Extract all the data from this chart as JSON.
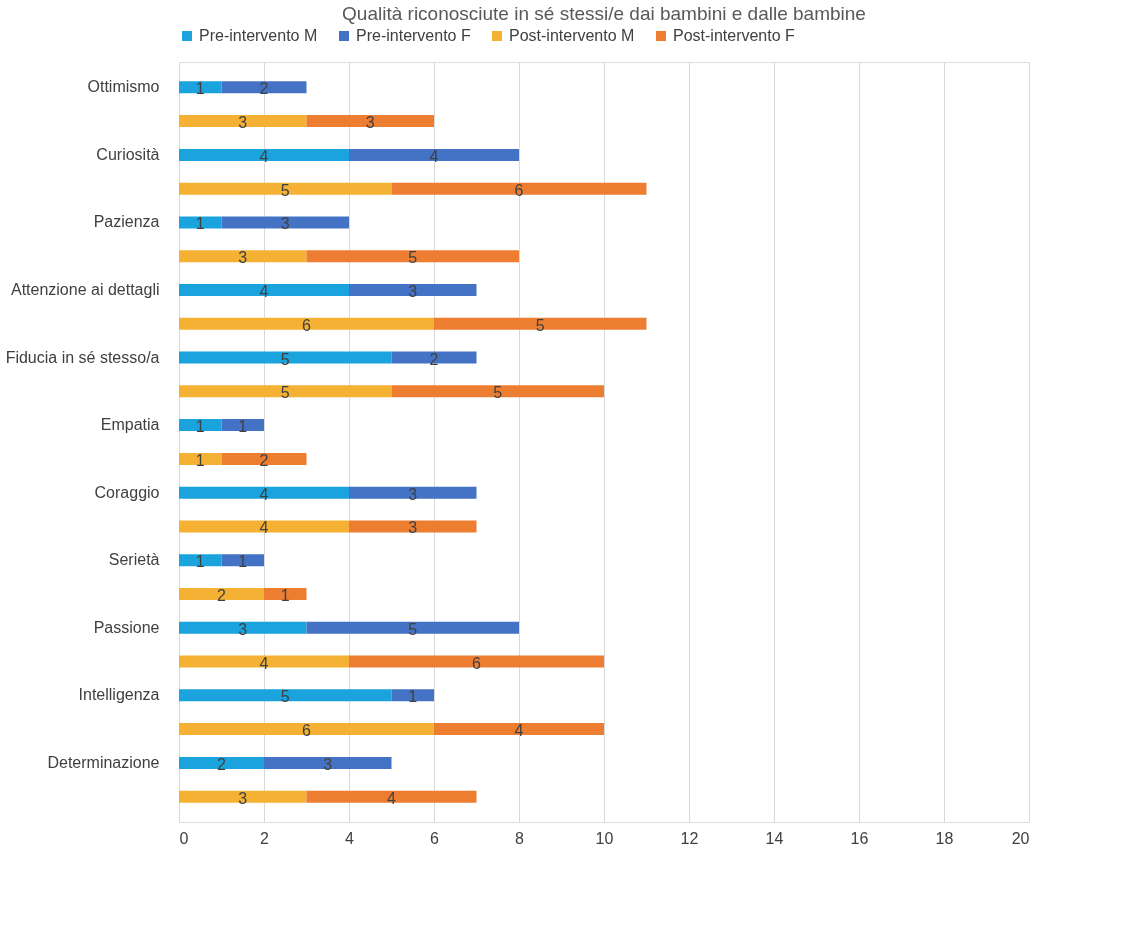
{
  "chart_data": {
    "type": "bar",
    "orientation": "horizontal",
    "stacked": true,
    "title": "Qualità riconosciute in sé stessi/e dai bambini e dalle bambine",
    "categories": [
      "Ottimismo",
      null,
      "Curiosità",
      null,
      "Pazienza",
      null,
      "Attenzione ai dettagli",
      null,
      "Fiducia in sé stesso/a",
      null,
      "Empatia",
      null,
      "Coraggio",
      null,
      "Serietà",
      null,
      "Passione",
      null,
      "Intelligenza",
      null,
      "Determinazione",
      null
    ],
    "series": [
      {
        "name": "Pre-intervento M",
        "color": "#1aa3dc",
        "values": [
          1,
          null,
          4,
          null,
          1,
          null,
          4,
          null,
          5,
          null,
          1,
          null,
          4,
          null,
          1,
          null,
          3,
          null,
          5,
          null,
          2,
          null
        ]
      },
      {
        "name": "Pre-intervento F",
        "color": "#4472c4",
        "values": [
          2,
          null,
          4,
          null,
          3,
          null,
          3,
          null,
          2,
          null,
          1,
          null,
          3,
          null,
          1,
          null,
          5,
          null,
          1,
          null,
          3,
          null
        ]
      },
      {
        "name": "Post-intervento M",
        "color": "#f4b133",
        "values": [
          null,
          3,
          null,
          5,
          null,
          3,
          null,
          6,
          null,
          5,
          null,
          1,
          null,
          4,
          null,
          2,
          null,
          4,
          null,
          6,
          null,
          3
        ]
      },
      {
        "name": "Post-intervento F",
        "color": "#ed7d31",
        "values": [
          null,
          3,
          null,
          6,
          null,
          5,
          null,
          5,
          null,
          5,
          null,
          2,
          null,
          3,
          null,
          1,
          null,
          6,
          null,
          4,
          null,
          4
        ]
      }
    ],
    "xlim": [
      0,
      20
    ],
    "xticks": [
      0,
      2,
      4,
      6,
      8,
      10,
      12,
      14,
      16,
      18,
      20
    ],
    "grid": "x",
    "legend": "top",
    "data_labels": true
  }
}
